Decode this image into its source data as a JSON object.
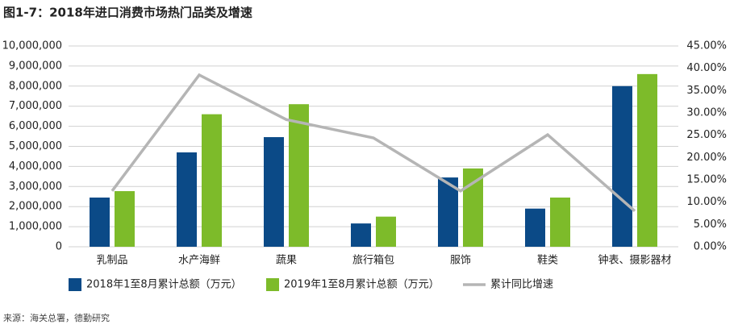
{
  "chart_data": {
    "type": "bar_line",
    "title": "图1-7：2018年进口消费市场热门品类及增速",
    "source": "来源：海关总署，德勤研究",
    "categories": [
      "乳制品",
      "水产海鲜",
      "蔬果",
      "旅行箱包",
      "服饰",
      "鞋类",
      "钟表、摄影器材"
    ],
    "series": [
      {
        "name": "2018年1至8月累计总额（万元）",
        "color": "#0b4a87",
        "values": [
          2450000,
          4700000,
          5460000,
          1160000,
          3450000,
          1900000,
          8000000
        ]
      },
      {
        "name": "2019年1至8月累计总额（万元）",
        "color": "#7dbb2a",
        "values": [
          2770000,
          6600000,
          7100000,
          1500000,
          3900000,
          2450000,
          8600000
        ]
      },
      {
        "name": "累计同比增速",
        "color": "#b5b5b5",
        "axis": "y2",
        "type": "line",
        "values": [
          12.5,
          38.5,
          28.5,
          24.4,
          12.5,
          25.1,
          8
        ]
      }
    ],
    "ylim": [
      0,
      10000000
    ],
    "yticks": [
      0,
      {
        "value": 1000000,
        "label": "1,000,000"
      },
      {
        "value": 2000000,
        "label": "2,000,000"
      },
      {
        "value": 3000000,
        "label": "3,000,000"
      },
      {
        "value": 4000000,
        "label": "4,000,000"
      },
      {
        "value": 5000000,
        "label": "5,000,000"
      },
      {
        "value": 6000000,
        "label": "6,000,000"
      },
      {
        "value": 7000000,
        "label": "7,000,000"
      },
      {
        "value": 8000000,
        "label": "8,000,000"
      },
      {
        "value": 9000000,
        "label": "9,000,000"
      },
      {
        "value": 10000000,
        "label": "10,000,000"
      }
    ],
    "y2lim": [
      0,
      45
    ],
    "y2ticks": [
      {
        "value": 0,
        "label": "0.00%"
      },
      {
        "value": 5,
        "label": "5.00%"
      },
      {
        "value": 10,
        "label": "10.00%"
      },
      {
        "value": 15,
        "label": "15.00%"
      },
      {
        "value": 20,
        "label": "20.00%"
      },
      {
        "value": 25,
        "label": "25.00%"
      },
      {
        "value": 30,
        "label": "30.00%"
      },
      {
        "value": 35,
        "label": "35.00%"
      },
      {
        "value": 40,
        "label": "40.00%"
      },
      {
        "value": 45,
        "label": "45.00%"
      }
    ],
    "grid": true
  }
}
